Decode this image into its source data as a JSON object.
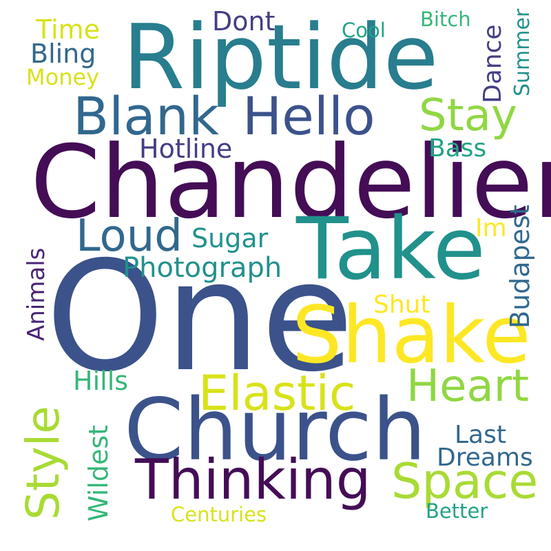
{
  "words": {
    "one": "One",
    "chandelier": "Chandelier",
    "riptide": "Riptide",
    "take": "Take",
    "church": "Church",
    "shake": "Shake",
    "blank": "Blank",
    "hello": "Hello",
    "thinking": "Thinking",
    "space": "Space",
    "elastic": "Elastic",
    "heart": "Heart",
    "stay": "Stay",
    "loud": "Loud",
    "style": "Style",
    "photograph": "Photograph",
    "hotline": "Hotline",
    "sugar": "Sugar",
    "hills": "Hills",
    "dont": "Dont",
    "time": "Time",
    "bling": "Bling",
    "money": "Money",
    "cool": "Cool",
    "bitch": "Bitch",
    "dance": "Dance",
    "summer": "Summer",
    "bass": "Bass",
    "im": "Im",
    "budapest": "Budapest",
    "shut": "Shut",
    "animals": "Animals",
    "wildest": "Wildest",
    "last": "Last",
    "dreams": "Dreams",
    "better": "Better",
    "centuries": "Centuries"
  },
  "colors": {
    "deep_purple": "#440d56",
    "purple": "#482475",
    "indigo": "#433e85",
    "blue": "#3b528b",
    "steel_blue": "#31688e",
    "teal": "#287d8e",
    "teal_green": "#21918c",
    "green": "#20a386",
    "mint": "#35b779",
    "leaf": "#5ec962",
    "lime": "#90d743",
    "chartreuse": "#a8db34",
    "yellow": "#d8e219",
    "gold": "#fde725",
    "background": "#ffffff"
  }
}
